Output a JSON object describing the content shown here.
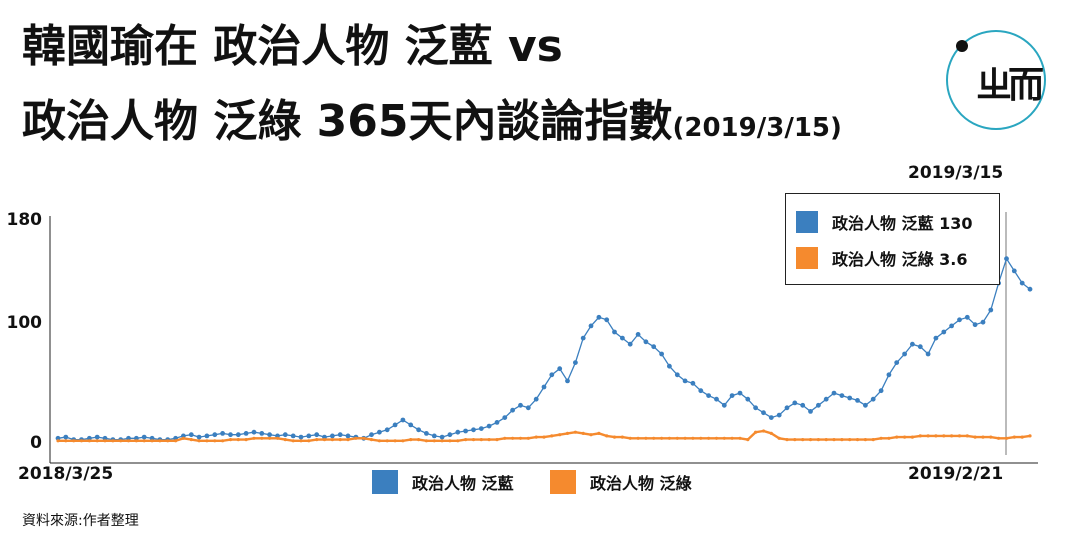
{
  "title": {
    "line1": "韓國瑜在 政治人物 泛藍 vs",
    "line2": "政治人物 泛綠 365天內談論指數",
    "line2_sub": "(2019/3/15)"
  },
  "logo": {
    "glyph": "ㄓ而",
    "icon": "brand-logo-icon"
  },
  "colors": {
    "blue": "#3b7fbf",
    "orange": "#f58a2e",
    "logo_ring": "#2aa6c0"
  },
  "source": "資料來源:作者整理",
  "annotation": {
    "date_top": "2019/3/15"
  },
  "chart_data": {
    "type": "line",
    "x_start_label": "2018/3/25",
    "x_end_label": "2019/2/21",
    "yticks": [
      "180",
      "100",
      "0"
    ],
    "ylim": [
      0,
      180
    ],
    "legend_box": [
      {
        "label": "政治人物 泛藍 130",
        "color": "#3b7fbf"
      },
      {
        "label": "政治人物 泛綠 3.6",
        "color": "#f58a2e"
      }
    ],
    "legend_bottom": [
      {
        "label": "政治人物 泛藍",
        "color": "#3b7fbf"
      },
      {
        "label": "政治人物 泛綠",
        "color": "#f58a2e"
      }
    ],
    "series": [
      {
        "name": "政治人物 泛藍",
        "color": "#3b7fbf",
        "values": [
          3,
          4,
          2,
          2,
          3,
          4,
          3,
          2,
          2,
          3,
          3,
          4,
          3,
          2,
          2,
          3,
          5,
          6,
          4,
          5,
          6,
          7,
          6,
          6,
          7,
          8,
          7,
          6,
          5,
          6,
          5,
          4,
          5,
          6,
          4,
          5,
          6,
          5,
          4,
          3,
          6,
          8,
          10,
          14,
          18,
          14,
          10,
          7,
          5,
          4,
          6,
          8,
          9,
          10,
          11,
          13,
          16,
          20,
          26,
          30,
          28,
          35,
          45,
          55,
          60,
          50,
          65,
          85,
          95,
          102,
          100,
          90,
          85,
          80,
          88,
          82,
          78,
          72,
          62,
          55,
          50,
          48,
          42,
          38,
          35,
          30,
          38,
          40,
          35,
          28,
          24,
          20,
          22,
          28,
          32,
          30,
          25,
          30,
          35,
          40,
          38,
          36,
          34,
          30,
          35,
          42,
          55,
          65,
          72,
          80,
          78,
          72,
          85,
          90,
          95,
          100,
          102,
          96,
          98,
          108,
          130,
          150,
          140,
          130,
          125
        ]
      },
      {
        "name": "政治人物 泛綠",
        "color": "#f58a2e",
        "values": [
          1,
          1,
          1,
          1,
          1,
          1,
          1,
          1,
          1,
          1,
          1,
          1,
          1,
          1,
          1,
          1,
          3,
          2,
          1,
          1,
          1,
          1,
          2,
          2,
          2,
          3,
          3,
          3,
          3,
          2,
          1,
          1,
          1,
          2,
          2,
          2,
          2,
          2,
          3,
          3,
          2,
          1,
          1,
          1,
          1,
          2,
          2,
          1,
          1,
          1,
          1,
          1,
          2,
          2,
          2,
          2,
          2,
          3,
          3,
          3,
          3,
          4,
          4,
          5,
          6,
          7,
          8,
          7,
          6,
          7,
          5,
          4,
          4,
          3,
          3,
          3,
          3,
          3,
          3,
          3,
          3,
          3,
          3,
          3,
          3,
          3,
          3,
          3,
          2,
          8,
          9,
          7,
          3,
          2,
          2,
          2,
          2,
          2,
          2,
          2,
          2,
          2,
          2,
          2,
          2,
          3,
          3,
          4,
          4,
          4,
          5,
          5,
          5,
          5,
          5,
          5,
          5,
          4,
          4,
          4,
          3,
          3,
          4,
          4,
          5
        ]
      }
    ]
  }
}
